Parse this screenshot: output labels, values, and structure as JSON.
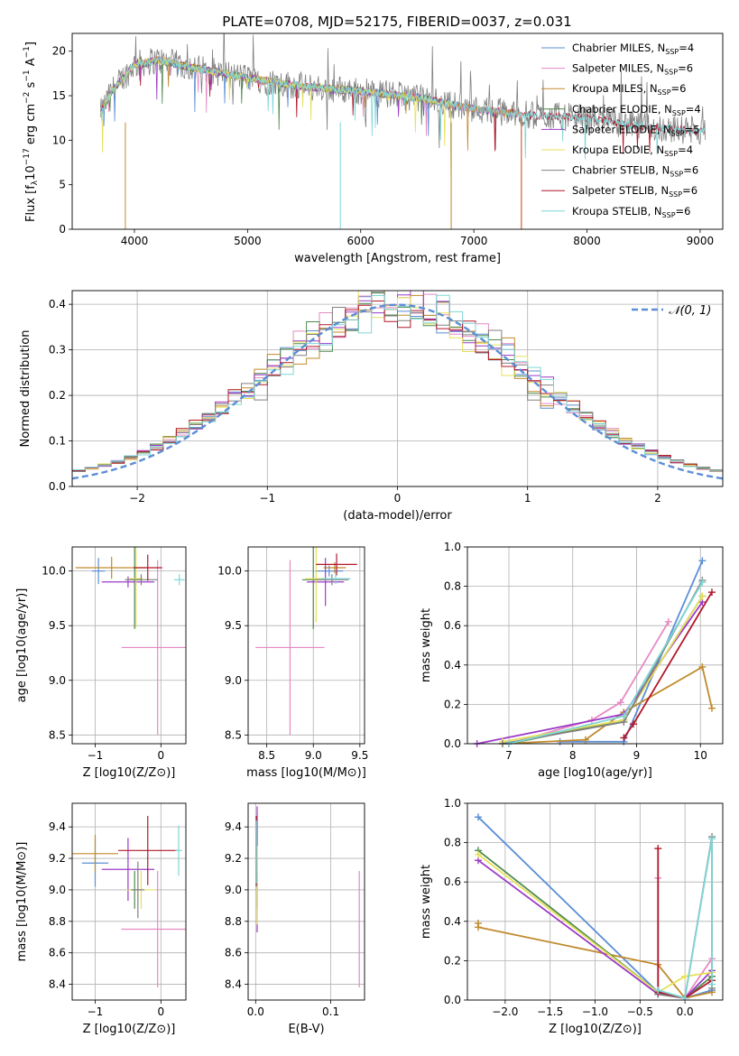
{
  "figure_title": "PLATE=0708, MJD=52175, FIBERID=0037, z=0.031",
  "colors": {
    "Chabrier MILES": "#5b8ed6",
    "Salpeter MILES": "#e58ac3",
    "Kroupa MILES": "#c08a2d",
    "Chabrier ELODIE": "#4f8a4f",
    "Salpeter ELODIE": "#9b3cc7",
    "Kroupa ELODIE": "#e6e05a",
    "Chabrier STELIB": "#808080",
    "Salpeter STELIB": "#b2182b",
    "Kroupa STELIB": "#7fd6d6"
  },
  "chart_data": [
    {
      "id": "spectrum",
      "type": "line",
      "title": "PLATE=0708, MJD=52175, FIBERID=0037, z=0.031",
      "xlabel": "wavelength [Angstrom, rest frame]",
      "ylabel": "Flux [f_λ 10^-17 erg cm^-2 s^-1 A^-1]",
      "xlim": [
        3450,
        9200
      ],
      "ylim": [
        0,
        22
      ],
      "xticks": [
        4000,
        5000,
        6000,
        7000,
        8000,
        9000
      ],
      "yticks": [
        0,
        5,
        10,
        15,
        20
      ],
      "grid": false,
      "legend_position": "top-right",
      "continuum_knots": [
        [
          3700,
          13
        ],
        [
          3800,
          15.5
        ],
        [
          3900,
          17
        ],
        [
          4000,
          18.5
        ],
        [
          4200,
          19
        ],
        [
          4500,
          18.2
        ],
        [
          5000,
          17
        ],
        [
          5500,
          16
        ],
        [
          6000,
          15.5
        ],
        [
          6500,
          14.8
        ],
        [
          7000,
          13.5
        ],
        [
          7500,
          12.8
        ],
        [
          8000,
          12.5
        ],
        [
          8500,
          11.5
        ],
        [
          9000,
          11
        ],
        [
          9050,
          10.8
        ]
      ],
      "spikes": [
        [
          3920,
          0
        ],
        [
          5820,
          0
        ],
        [
          6800,
          0
        ],
        [
          7420,
          0
        ]
      ],
      "series": [
        {
          "name": "Chabrier MILES, N_SSP=4",
          "label_base": "Chabrier MILES, N",
          "label_sub": "SSP",
          "label_tail": "=4",
          "x_end": 7420
        },
        {
          "name": "Salpeter MILES, N_SSP=6",
          "label_base": "Salpeter MILES, N",
          "label_sub": "SSP",
          "label_tail": "=6",
          "x_end": 7420
        },
        {
          "name": "Kroupa MILES, N_SSP=6",
          "label_base": "Kroupa MILES, N",
          "label_sub": "SSP",
          "label_tail": "=6",
          "x_end": 7420
        },
        {
          "name": "Chabrier ELODIE, N_SSP=4",
          "label_base": "Chabrier ELODIE, N",
          "label_sub": "SSP",
          "label_tail": "=4",
          "x_end": 6800
        },
        {
          "name": "Salpeter ELODIE, N_SSP=5",
          "label_base": "Salpeter ELODIE, N",
          "label_sub": "SSP",
          "label_tail": "=5",
          "x_end": 6800
        },
        {
          "name": "Kroupa ELODIE, N_SSP=4",
          "label_base": "Kroupa ELODIE, N",
          "label_sub": "SSP",
          "label_tail": "=4",
          "x_end": 6800
        },
        {
          "name": "Chabrier STELIB, N_SSP=6",
          "label_base": "Chabrier STELIB, N",
          "label_sub": "SSP",
          "label_tail": "=6",
          "x_end": 9050
        },
        {
          "name": "Salpeter STELIB, N_SSP=6",
          "label_base": "Salpeter STELIB, N",
          "label_sub": "SSP",
          "label_tail": "=6",
          "x_end": 9050
        },
        {
          "name": "Kroupa STELIB, N_SSP=6",
          "label_base": "Kroupa STELIB, N",
          "label_sub": "SSP",
          "label_tail": "=6",
          "x_end": 9050
        }
      ]
    },
    {
      "id": "residuals",
      "type": "histogram",
      "xlabel": "(data-model)/error",
      "ylabel": "Normed distribution",
      "xlim": [
        -2.5,
        2.5
      ],
      "ylim": [
        0,
        0.43
      ],
      "xticks": [
        -2,
        -1,
        0,
        1,
        2
      ],
      "yticks": [
        0.0,
        0.1,
        0.2,
        0.3,
        0.4
      ],
      "grid": true,
      "legend_position": "top-right",
      "reference_curve": {
        "name": "N(0,1)",
        "label": "𝒩(0, 1)",
        "mean": 0,
        "sigma": 1,
        "color": "#5b8ed6",
        "style": "dashed"
      },
      "bin_edges_range": [
        -2.5,
        2.5
      ],
      "bin_width": 0.1,
      "series_note": "nine step histograms, one per SSP model, closely following the standard normal"
    },
    {
      "id": "age-metallicity",
      "type": "errorbar",
      "xlabel": "Z [log10(Z/Z⊙)]",
      "ylabel": "age [log10(age/yr)]",
      "xlim": [
        -1.35,
        0.38
      ],
      "ylim": [
        8.42,
        10.22
      ],
      "xticks": [
        -1,
        0
      ],
      "yticks": [
        8.5,
        9.0,
        9.5,
        10.0
      ],
      "grid": true,
      "points": [
        {
          "model": "Chabrier MILES",
          "x": -0.95,
          "xerr": 0.1,
          "y": 10.0,
          "yerr": 0.12
        },
        {
          "model": "Salpeter MILES",
          "x": -0.05,
          "xerr": 0.55,
          "y": 9.3,
          "yerr": 0.8
        },
        {
          "model": "Kroupa MILES",
          "x": -0.75,
          "xerr": 0.55,
          "y": 10.03,
          "yerr": 0.1
        },
        {
          "model": "Chabrier ELODIE",
          "x": -0.4,
          "xerr": 0.1,
          "y": 9.92,
          "yerr": 0.45
        },
        {
          "model": "Salpeter ELODIE",
          "x": -0.5,
          "xerr": 0.4,
          "y": 9.9,
          "yerr": 0.05
        },
        {
          "model": "Kroupa ELODIE",
          "x": -0.38,
          "xerr": 0.1,
          "y": 9.93,
          "yerr": 0.45
        },
        {
          "model": "Chabrier STELIB",
          "x": -0.3,
          "xerr": 0.25,
          "y": 9.92,
          "yerr": 0.05
        },
        {
          "model": "Salpeter STELIB",
          "x": -0.2,
          "xerr": 0.22,
          "y": 10.03,
          "yerr": 0.12
        },
        {
          "model": "Kroupa STELIB",
          "x": 0.28,
          "xerr": 0.08,
          "y": 9.92,
          "yerr": 0.05
        }
      ]
    },
    {
      "id": "age-mass",
      "type": "errorbar",
      "xlabel": "mass [log10(M/M⊙)]",
      "ylabel": "",
      "xlim": [
        8.3,
        9.55
      ],
      "ylim": [
        8.42,
        10.22
      ],
      "xticks": [
        8.5,
        9.0,
        9.5
      ],
      "yticks": [
        8.5,
        9.0,
        9.5,
        10.0
      ],
      "grid": true,
      "points": [
        {
          "model": "Salpeter MILES",
          "x": 8.75,
          "xerr": 0.37,
          "y": 9.3,
          "yerr": 0.8
        },
        {
          "model": "Chabrier MILES",
          "x": 9.17,
          "xerr": 0.15,
          "y": 10.0,
          "yerr": 0.05
        },
        {
          "model": "Kroupa MILES",
          "x": 9.23,
          "xerr": 0.12,
          "y": 10.03,
          "yerr": 0.05
        },
        {
          "model": "Chabrier ELODIE",
          "x": 9.0,
          "xerr": 0.12,
          "y": 9.92,
          "yerr": 0.45
        },
        {
          "model": "Salpeter ELODIE",
          "x": 9.13,
          "xerr": 0.2,
          "y": 9.9,
          "yerr": 0.22
        },
        {
          "model": "Kroupa ELODIE",
          "x": 9.03,
          "xerr": 0.12,
          "y": 9.93,
          "yerr": 0.4
        },
        {
          "model": "Chabrier STELIB",
          "x": 9.2,
          "xerr": 0.18,
          "y": 9.92,
          "yerr": 0.05
        },
        {
          "model": "Salpeter STELIB",
          "x": 9.25,
          "xerr": 0.22,
          "y": 10.06,
          "yerr": 0.1
        },
        {
          "model": "Kroupa STELIB",
          "x": 9.24,
          "xerr": 0.16,
          "y": 9.93,
          "yerr": 0.05
        }
      ]
    },
    {
      "id": "mass-weight-age",
      "type": "line",
      "xlabel": "age [log10(age/yr)]",
      "ylabel": "mass weight",
      "xlim": [
        6.35,
        10.35
      ],
      "ylim": [
        0,
        1.0
      ],
      "xticks": [
        7,
        8,
        9,
        10
      ],
      "yticks": [
        0.0,
        0.2,
        0.4,
        0.6,
        0.8,
        1.0
      ],
      "grid": true,
      "series": [
        {
          "model": "Chabrier MILES",
          "points": [
            [
              7.8,
              0.01
            ],
            [
              8.8,
              0.01
            ],
            [
              10.03,
              0.93
            ]
          ]
        },
        {
          "model": "Salpeter MILES",
          "points": [
            [
              7.0,
              0.0
            ],
            [
              8.3,
              0.12
            ],
            [
              8.75,
              0.21
            ],
            [
              9.5,
              0.62
            ]
          ]
        },
        {
          "model": "Kroupa MILES",
          "points": [
            [
              6.9,
              0.0
            ],
            [
              8.2,
              0.02
            ],
            [
              8.8,
              0.16
            ],
            [
              10.03,
              0.39
            ],
            [
              10.18,
              0.18
            ]
          ]
        },
        {
          "model": "Chabrier ELODIE",
          "points": [
            [
              7.0,
              0.0
            ],
            [
              8.8,
              0.12
            ],
            [
              10.03,
              0.75
            ]
          ]
        },
        {
          "model": "Salpeter ELODIE",
          "points": [
            [
              6.5,
              0.0
            ],
            [
              8.8,
              0.15
            ],
            [
              10.03,
              0.72
            ]
          ]
        },
        {
          "model": "Kroupa ELODIE",
          "points": [
            [
              6.9,
              0.01
            ],
            [
              8.8,
              0.12
            ],
            [
              10.03,
              0.75
            ]
          ]
        },
        {
          "model": "Chabrier STELIB",
          "points": [
            [
              6.9,
              0.0
            ],
            [
              8.8,
              0.11
            ],
            [
              10.03,
              0.83
            ]
          ]
        },
        {
          "model": "Salpeter STELIB",
          "points": [
            [
              8.8,
              0.03
            ],
            [
              8.95,
              0.1
            ],
            [
              10.18,
              0.77
            ]
          ]
        },
        {
          "model": "Kroupa STELIB",
          "points": [
            [
              7.0,
              0.0
            ],
            [
              8.8,
              0.14
            ],
            [
              10.03,
              0.82
            ]
          ]
        }
      ]
    },
    {
      "id": "mass-metallicity",
      "type": "errorbar",
      "xlabel": "Z [log10(Z/Z⊙)]",
      "ylabel": "mass [log10(M/M⊙)]",
      "xlim": [
        -1.35,
        0.38
      ],
      "ylim": [
        8.3,
        9.55
      ],
      "xticks": [
        -1,
        0
      ],
      "yticks": [
        8.4,
        8.6,
        8.8,
        9.0,
        9.2,
        9.4
      ],
      "grid": true,
      "points": [
        {
          "model": "Chabrier MILES",
          "x": -1.0,
          "xerr": 0.2,
          "y": 9.17,
          "yerr": 0.15
        },
        {
          "model": "Salpeter MILES",
          "x": -0.05,
          "xerr": 0.55,
          "y": 8.75,
          "yerr": 0.37
        },
        {
          "model": "Kroupa MILES",
          "x": -1.0,
          "xerr": 0.35,
          "y": 9.23,
          "yerr": 0.12
        },
        {
          "model": "Chabrier ELODIE",
          "x": -0.4,
          "xerr": 0.1,
          "y": 9.0,
          "yerr": 0.12
        },
        {
          "model": "Salpeter ELODIE",
          "x": -0.5,
          "xerr": 0.4,
          "y": 9.13,
          "yerr": 0.2
        },
        {
          "model": "Kroupa ELODIE",
          "x": -0.3,
          "xerr": 0.22,
          "y": 9.0,
          "yerr": 0.12
        },
        {
          "model": "Chabrier STELIB",
          "x": -0.35,
          "xerr": 0.1,
          "y": 9.0,
          "yerr": 0.18
        },
        {
          "model": "Salpeter STELIB",
          "x": -0.2,
          "xerr": 0.45,
          "y": 9.25,
          "yerr": 0.22
        },
        {
          "model": "Kroupa STELIB",
          "x": 0.27,
          "xerr": 0.05,
          "y": 9.25,
          "yerr": 0.16
        }
      ]
    },
    {
      "id": "mass-ebv",
      "type": "errorbar",
      "xlabel": "E(B-V)",
      "ylabel": "",
      "xlim": [
        -0.01,
        0.145
      ],
      "ylim": [
        8.3,
        9.55
      ],
      "xticks": [
        0.0,
        0.1
      ],
      "yticks": [
        8.4,
        8.6,
        8.8,
        9.0,
        9.2,
        9.4
      ],
      "grid": true,
      "points": [
        {
          "model": "Chabrier MILES",
          "x": 0.001,
          "xerr": 0,
          "y": 9.17,
          "yerr": 0.15
        },
        {
          "model": "Salpeter MILES",
          "x": 0.138,
          "xerr": 0,
          "y": 8.75,
          "yerr": 0.37
        },
        {
          "model": "Kroupa MILES",
          "x": 0.001,
          "xerr": 0,
          "y": 9.23,
          "yerr": 0.12
        },
        {
          "model": "Chabrier ELODIE",
          "x": 0.002,
          "xerr": 0,
          "y": 9.0,
          "yerr": 0.12
        },
        {
          "model": "Salpeter ELODIE",
          "x": 0.002,
          "xerr": 0,
          "y": 9.13,
          "yerr": 0.4
        },
        {
          "model": "Kroupa ELODIE",
          "x": 0.002,
          "xerr": 0,
          "y": 9.03,
          "yerr": 0.25
        },
        {
          "model": "Chabrier STELIB",
          "x": 0.001,
          "xerr": 0,
          "y": 9.2,
          "yerr": 0.18
        },
        {
          "model": "Salpeter STELIB",
          "x": 0.001,
          "xerr": 0,
          "y": 9.25,
          "yerr": 0.22
        },
        {
          "model": "Kroupa STELIB",
          "x": 0.001,
          "xerr": 0,
          "y": 9.24,
          "yerr": 0.2
        }
      ]
    },
    {
      "id": "mass-weight-metallicity",
      "type": "line",
      "xlabel": "Z [log10(Z/Z⊙)]",
      "ylabel": "mass weight",
      "xlim": [
        -2.42,
        0.42
      ],
      "ylim": [
        0,
        1.0
      ],
      "xticks": [
        -2.0,
        -1.5,
        -1.0,
        -0.5,
        0.0
      ],
      "yticks": [
        0.0,
        0.2,
        0.4,
        0.6,
        0.8,
        1.0
      ],
      "grid": true,
      "series": [
        {
          "model": "Chabrier MILES",
          "points": [
            [
              -2.3,
              0.93
            ],
            [
              -0.3,
              0.04
            ],
            [
              0.0,
              0.01
            ],
            [
              0.3,
              0.05
            ]
          ]
        },
        {
          "model": "Salpeter MILES",
          "points": [
            [
              -0.3,
              0.62
            ],
            [
              -0.3,
              0.03
            ],
            [
              0.0,
              0.01
            ],
            [
              0.3,
              0.21
            ],
            [
              0.3,
              0.12
            ]
          ]
        },
        {
          "model": "Kroupa MILES",
          "points": [
            [
              -2.3,
              0.39
            ],
            [
              -2.3,
              0.37
            ],
            [
              -0.3,
              0.18
            ],
            [
              0.0,
              0.01
            ],
            [
              0.3,
              0.04
            ]
          ]
        },
        {
          "model": "Chabrier ELODIE",
          "points": [
            [
              -2.3,
              0.76
            ],
            [
              -0.3,
              0.04
            ],
            [
              0.0,
              0.01
            ],
            [
              0.3,
              0.12
            ]
          ]
        },
        {
          "model": "Salpeter ELODIE",
          "points": [
            [
              -2.3,
              0.71
            ],
            [
              -0.3,
              0.03
            ],
            [
              0.0,
              0.01
            ],
            [
              0.3,
              0.15
            ]
          ]
        },
        {
          "model": "Kroupa ELODIE",
          "points": [
            [
              -2.3,
              0.74
            ],
            [
              -0.3,
              0.04
            ],
            [
              0.0,
              0.12
            ],
            [
              0.3,
              0.14
            ]
          ]
        },
        {
          "model": "Chabrier STELIB",
          "points": [
            [
              -0.3,
              0.03
            ],
            [
              0.0,
              0.01
            ],
            [
              0.3,
              0.83
            ],
            [
              0.3,
              0.06
            ]
          ]
        },
        {
          "model": "Salpeter STELIB",
          "points": [
            [
              -0.3,
              0.77
            ],
            [
              -0.3,
              0.04
            ],
            [
              0.0,
              0.01
            ],
            [
              0.3,
              0.1
            ]
          ]
        },
        {
          "model": "Kroupa STELIB",
          "points": [
            [
              -0.3,
              0.05
            ],
            [
              0.0,
              0.01
            ],
            [
              0.3,
              0.82
            ],
            [
              0.3,
              0.08
            ]
          ]
        }
      ]
    }
  ]
}
